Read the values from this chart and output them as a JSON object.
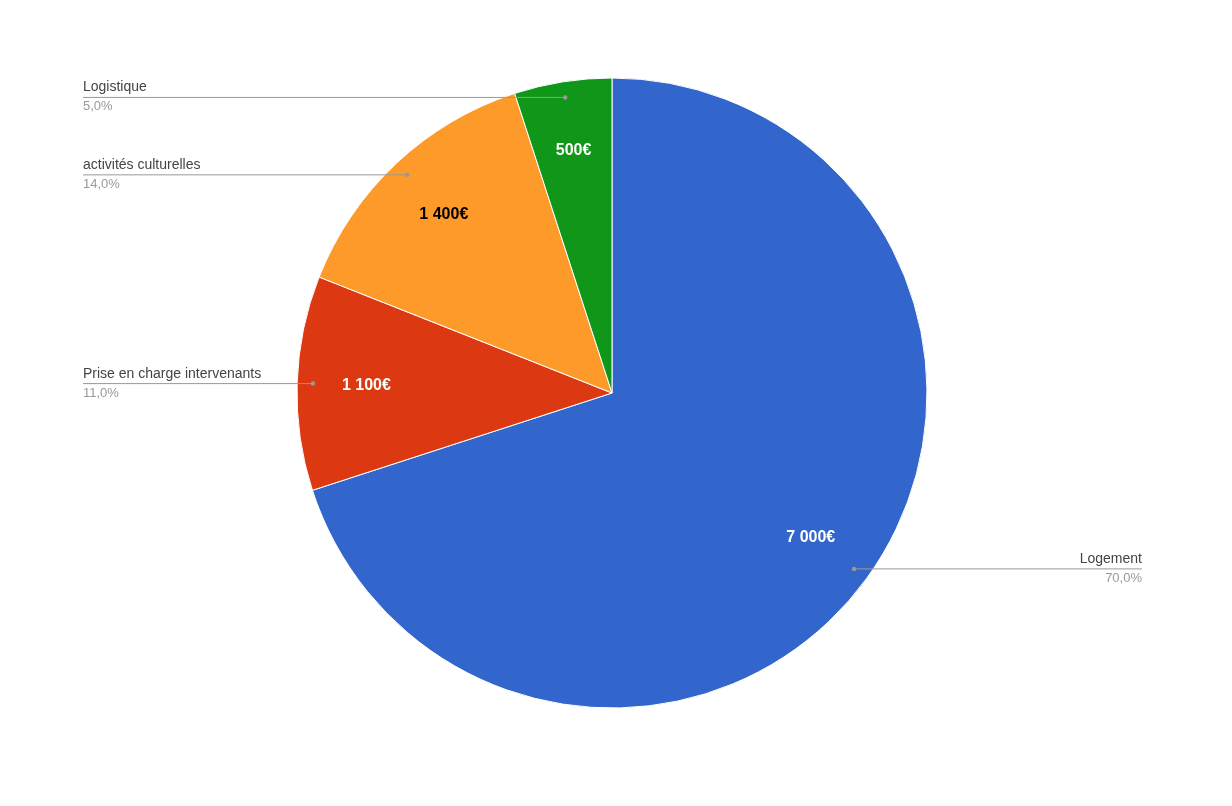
{
  "chart_data": {
    "type": "pie",
    "categories": [
      "Logement",
      "Prise en charge intervenants",
      "activités culturelles",
      "Logistique"
    ],
    "values": [
      7000,
      1100,
      1400,
      500
    ],
    "colors": [
      "#3366cc",
      "#dc3912",
      "#fd9a2a",
      "#109618"
    ],
    "value_labels": [
      "7 000€",
      "1 100€",
      "1 400€",
      "500€"
    ],
    "annotations": [
      "70,0%",
      "11,0%",
      "14,0%",
      "5,0%"
    ]
  }
}
